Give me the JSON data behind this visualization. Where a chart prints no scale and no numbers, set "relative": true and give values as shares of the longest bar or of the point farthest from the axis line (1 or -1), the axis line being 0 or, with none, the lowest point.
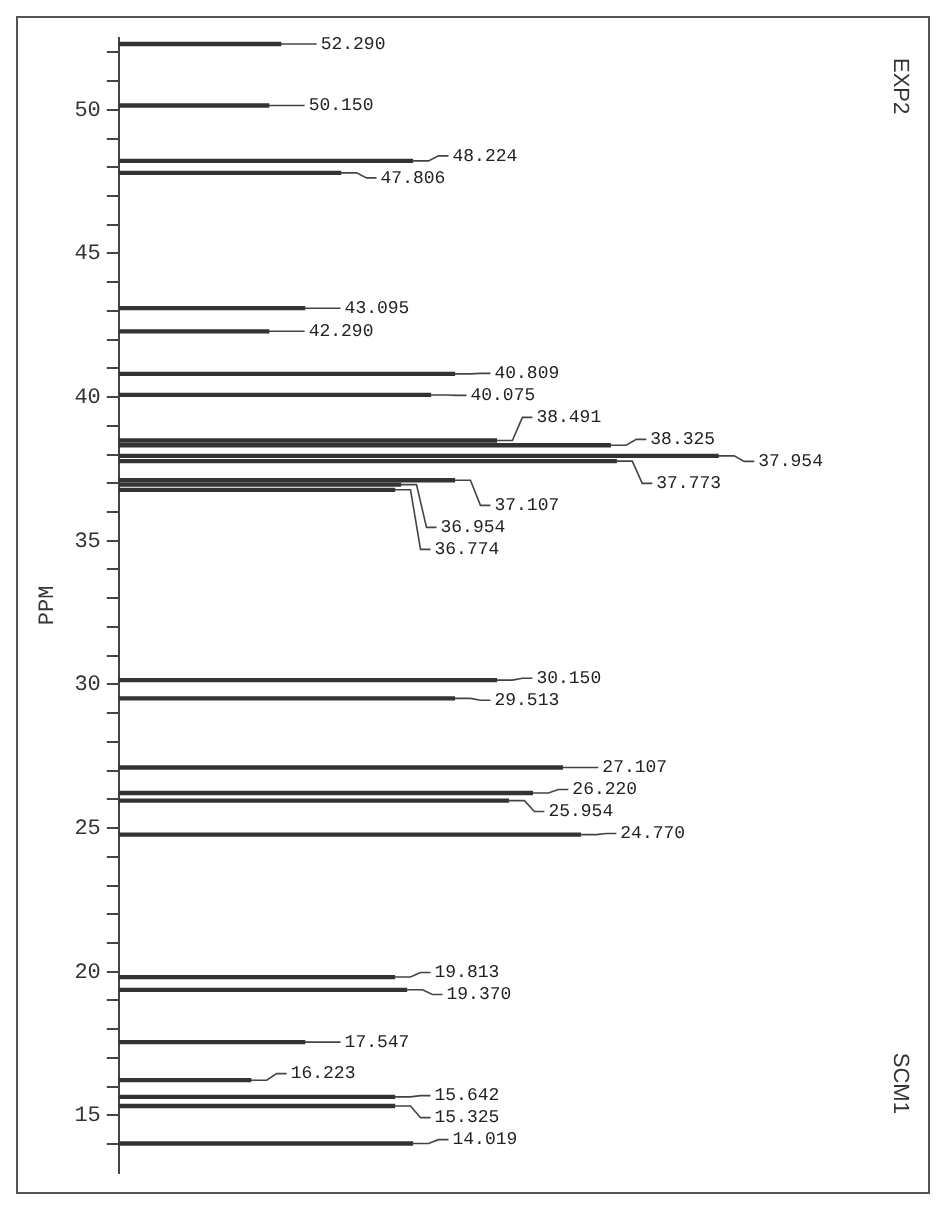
{
  "chart_data": {
    "type": "bar",
    "orientation": "horizontal",
    "relative": true,
    "ylabel": "PPM",
    "x": [
      52.29,
      50.15,
      48.224,
      47.806,
      43.095,
      42.29,
      40.809,
      40.075,
      38.491,
      38.325,
      37.954,
      37.773,
      37.107,
      36.954,
      36.774,
      30.15,
      29.513,
      27.107,
      26.22,
      25.954,
      24.77,
      19.813,
      19.37,
      17.547,
      16.223,
      15.642,
      15.325,
      14.019
    ],
    "values": [
      0.27,
      0.25,
      0.49,
      0.37,
      0.31,
      0.25,
      0.56,
      0.52,
      0.63,
      0.82,
      1,
      0.83,
      0.56,
      0.47,
      0.46,
      0.63,
      0.56,
      0.74,
      0.69,
      0.65,
      0.77,
      0.46,
      0.48,
      0.31,
      0.22,
      0.46,
      0.46,
      0.49
    ],
    "color": "#333333",
    "ylim": [
      13,
      52.5
    ],
    "yticks": [
      {
        "value": 14,
        "label": null
      },
      15,
      {
        "value": 16,
        "label": null
      },
      {
        "value": 17,
        "label": null
      },
      {
        "value": 18,
        "label": null
      },
      {
        "value": 19,
        "label": null
      },
      20,
      {
        "value": 21,
        "label": null
      },
      {
        "value": 22,
        "label": null
      },
      {
        "value": 23,
        "label": null
      },
      {
        "value": 24,
        "label": null
      },
      25,
      {
        "value": 26,
        "label": null
      },
      {
        "value": 27,
        "label": null
      },
      {
        "value": 28,
        "label": null
      },
      {
        "value": 29,
        "label": null
      },
      30,
      {
        "value": 31,
        "label": null
      },
      {
        "value": 32,
        "label": null
      },
      {
        "value": 33,
        "label": null
      },
      {
        "value": 34,
        "label": null
      },
      35,
      {
        "value": 36,
        "label": null
      },
      {
        "value": 37,
        "label": null
      },
      {
        "value": 38,
        "label": null
      },
      {
        "value": 39,
        "label": null
      },
      40,
      {
        "value": 41,
        "label": null
      },
      {
        "value": 42,
        "label": null
      },
      {
        "value": 43,
        "label": null
      },
      {
        "value": 44,
        "label": null
      },
      45,
      {
        "value": 46,
        "label": null
      },
      {
        "value": 47,
        "label": null
      },
      {
        "value": 48,
        "label": null
      },
      {
        "value": 49,
        "label": null
      },
      50,
      {
        "value": 51,
        "label": null
      },
      {
        "value": 52,
        "label": null
      }
    ],
    "annotations": [
      {
        "text": "52.290",
        "x": 0.27,
        "y": 52.29
      },
      {
        "text": "50.150",
        "x": 0.25,
        "y": 50.15
      },
      {
        "text": "48.224",
        "x": 0.49,
        "y": 48.224
      },
      {
        "text": "47.806",
        "x": 0.37,
        "y": 47.806
      },
      {
        "text": "43.095",
        "x": 0.31,
        "y": 43.095
      },
      {
        "text": "42.290",
        "x": 0.25,
        "y": 42.29
      },
      {
        "text": "40.809",
        "x": 0.56,
        "y": 40.809
      },
      {
        "text": "40.075",
        "x": 0.52,
        "y": 40.075
      },
      {
        "text": "38.491",
        "x": 0.63,
        "y": 38.491
      },
      {
        "text": "38.325",
        "x": 0.82,
        "y": 38.325
      },
      {
        "text": "37.954",
        "x": 1,
        "y": 37.954
      },
      {
        "text": "37.773",
        "x": 0.83,
        "y": 37.773
      },
      {
        "text": "37.107",
        "x": 0.56,
        "y": 37.107
      },
      {
        "text": "36.954",
        "x": 0.47,
        "y": 36.954
      },
      {
        "text": "36.774",
        "x": 0.46,
        "y": 36.774
      },
      {
        "text": "30.150",
        "x": 0.63,
        "y": 30.15
      },
      {
        "text": "29.513",
        "x": 0.56,
        "y": 29.513
      },
      {
        "text": "27.107",
        "x": 0.74,
        "y": 27.107
      },
      {
        "text": "26.220",
        "x": 0.69,
        "y": 26.22
      },
      {
        "text": "25.954",
        "x": 0.65,
        "y": 25.954
      },
      {
        "text": "24.770",
        "x": 0.77,
        "y": 24.77
      },
      {
        "text": "19.813",
        "x": 0.46,
        "y": 19.813
      },
      {
        "text": "19.370",
        "x": 0.48,
        "y": 19.37
      },
      {
        "text": "17.547",
        "x": 0.31,
        "y": 17.547
      },
      {
        "text": "16.223",
        "x": 0.22,
        "y": 16.223
      },
      {
        "text": "15.642",
        "x": 0.46,
        "y": 15.642
      },
      {
        "text": "15.325",
        "x": 0.46,
        "y": 15.325
      },
      {
        "text": "14.019",
        "x": 0.49,
        "y": 14.019
      },
      "EXP2",
      "SCM1"
    ]
  }
}
